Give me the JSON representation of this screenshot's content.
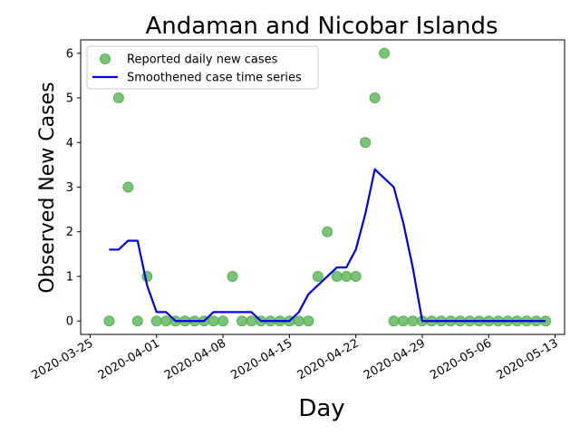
{
  "chart_data": {
    "type": "scatter+line",
    "title": "Andaman and Nicobar Islands",
    "xlabel": "Day",
    "ylabel": "Observed New Cases",
    "xlim": [
      "2020-03-24",
      "2020-05-14"
    ],
    "ylim": [
      -0.3,
      6.3
    ],
    "x_ticks": [
      "2020-03-25",
      "2020-04-01",
      "2020-04-08",
      "2020-04-15",
      "2020-04-22",
      "2020-04-29",
      "2020-05-06",
      "2020-05-13"
    ],
    "y_ticks": [
      0,
      1,
      2,
      3,
      4,
      5,
      6
    ],
    "grid": false,
    "legend_position": "top-left",
    "series": [
      {
        "name": "Reported daily new cases",
        "kind": "scatter",
        "color": "#4daf4a",
        "x": [
          "2020-03-27",
          "2020-03-28",
          "2020-03-29",
          "2020-03-30",
          "2020-03-31",
          "2020-04-01",
          "2020-04-02",
          "2020-04-03",
          "2020-04-04",
          "2020-04-05",
          "2020-04-06",
          "2020-04-07",
          "2020-04-08",
          "2020-04-09",
          "2020-04-10",
          "2020-04-11",
          "2020-04-12",
          "2020-04-13",
          "2020-04-14",
          "2020-04-15",
          "2020-04-16",
          "2020-04-17",
          "2020-04-18",
          "2020-04-19",
          "2020-04-20",
          "2020-04-21",
          "2020-04-22",
          "2020-04-23",
          "2020-04-24",
          "2020-04-25",
          "2020-04-26",
          "2020-04-27",
          "2020-04-28",
          "2020-04-29",
          "2020-04-30",
          "2020-05-01",
          "2020-05-02",
          "2020-05-03",
          "2020-05-04",
          "2020-05-05",
          "2020-05-06",
          "2020-05-07",
          "2020-05-08",
          "2020-05-09",
          "2020-05-10",
          "2020-05-11",
          "2020-05-12"
        ],
        "values": [
          0,
          5,
          3,
          0,
          1,
          0,
          0,
          0,
          0,
          0,
          0,
          0,
          0,
          1,
          0,
          0,
          0,
          0,
          0,
          0,
          0,
          0,
          1,
          2,
          1,
          1,
          1,
          4,
          5,
          6,
          0,
          0,
          0,
          0,
          0,
          0,
          0,
          0,
          0,
          0,
          0,
          0,
          0,
          0,
          0,
          0,
          0
        ]
      },
      {
        "name": "Smoothened case time series",
        "kind": "line",
        "color": "#0000e6",
        "x": [
          "2020-03-27",
          "2020-03-28",
          "2020-03-29",
          "2020-03-30",
          "2020-03-31",
          "2020-04-01",
          "2020-04-02",
          "2020-04-03",
          "2020-04-04",
          "2020-04-05",
          "2020-04-06",
          "2020-04-07",
          "2020-04-08",
          "2020-04-09",
          "2020-04-10",
          "2020-04-11",
          "2020-04-12",
          "2020-04-13",
          "2020-04-14",
          "2020-04-15",
          "2020-04-16",
          "2020-04-17",
          "2020-04-18",
          "2020-04-19",
          "2020-04-20",
          "2020-04-21",
          "2020-04-22",
          "2020-04-23",
          "2020-04-24",
          "2020-04-25",
          "2020-04-26",
          "2020-04-27",
          "2020-04-28",
          "2020-04-29",
          "2020-04-30",
          "2020-05-01",
          "2020-05-02",
          "2020-05-03",
          "2020-05-04",
          "2020-05-05",
          "2020-05-06",
          "2020-05-07",
          "2020-05-08",
          "2020-05-09",
          "2020-05-10",
          "2020-05-11",
          "2020-05-12"
        ],
        "values": [
          1.6,
          1.6,
          1.8,
          1.8,
          0.8,
          0.2,
          0.2,
          0.0,
          0.0,
          0.0,
          0.0,
          0.2,
          0.2,
          0.2,
          0.2,
          0.2,
          0.0,
          0.0,
          0.0,
          0.0,
          0.2,
          0.6,
          0.8,
          1.0,
          1.2,
          1.2,
          1.6,
          2.4,
          3.4,
          3.2,
          3.0,
          2.2,
          1.2,
          0.0,
          0.0,
          0.0,
          0.0,
          0.0,
          0.0,
          0.0,
          0.0,
          0.0,
          0.0,
          0.0,
          0.0,
          0.0,
          0.0
        ]
      }
    ]
  }
}
